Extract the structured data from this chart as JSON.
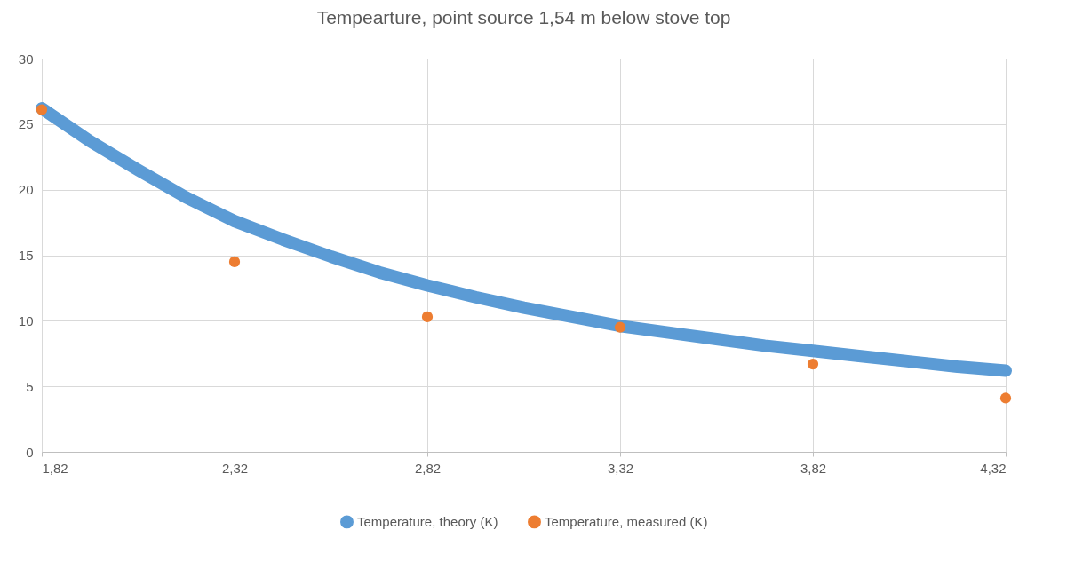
{
  "chart_data": {
    "type": "scatter",
    "title": "Tempearture, point source 1,54 m below stove top",
    "xlim": [
      1.82,
      4.32
    ],
    "xticks": [
      {
        "value": 1.82,
        "label": "1,82"
      },
      {
        "value": 2.32,
        "label": "2,32"
      },
      {
        "value": 2.82,
        "label": "2,82"
      },
      {
        "value": 3.32,
        "label": "3,32"
      },
      {
        "value": 3.82,
        "label": "3,82"
      },
      {
        "value": 4.32,
        "label": "4,32"
      }
    ],
    "ylim": [
      0,
      30
    ],
    "yticks": [
      0,
      5,
      10,
      15,
      20,
      25,
      30
    ],
    "grid": true,
    "legend": "bottom",
    "series": [
      {
        "name": "Temperature, theory (K)",
        "type": "line",
        "color": "#5b9bd5",
        "x": [
          1.82,
          1.945,
          2.07,
          2.195,
          2.32,
          2.445,
          2.57,
          2.695,
          2.82,
          2.945,
          3.07,
          3.195,
          3.32,
          3.445,
          3.57,
          3.695,
          3.82,
          3.945,
          4.07,
          4.195,
          4.32
        ],
        "values": [
          26.2,
          23.7,
          21.5,
          19.4,
          17.6,
          16.2,
          14.9,
          13.7,
          12.7,
          11.8,
          11.0,
          10.3,
          9.6,
          9.1,
          8.6,
          8.1,
          7.7,
          7.3,
          6.9,
          6.5,
          6.2
        ]
      },
      {
        "name": "Temperature, measured (K)",
        "marker": "circle",
        "color": "#ed7d31",
        "x": [
          1.82,
          2.32,
          2.82,
          3.32,
          3.82,
          4.32
        ],
        "values": [
          26.1,
          14.5,
          10.3,
          9.5,
          6.7,
          4.1
        ]
      }
    ]
  }
}
